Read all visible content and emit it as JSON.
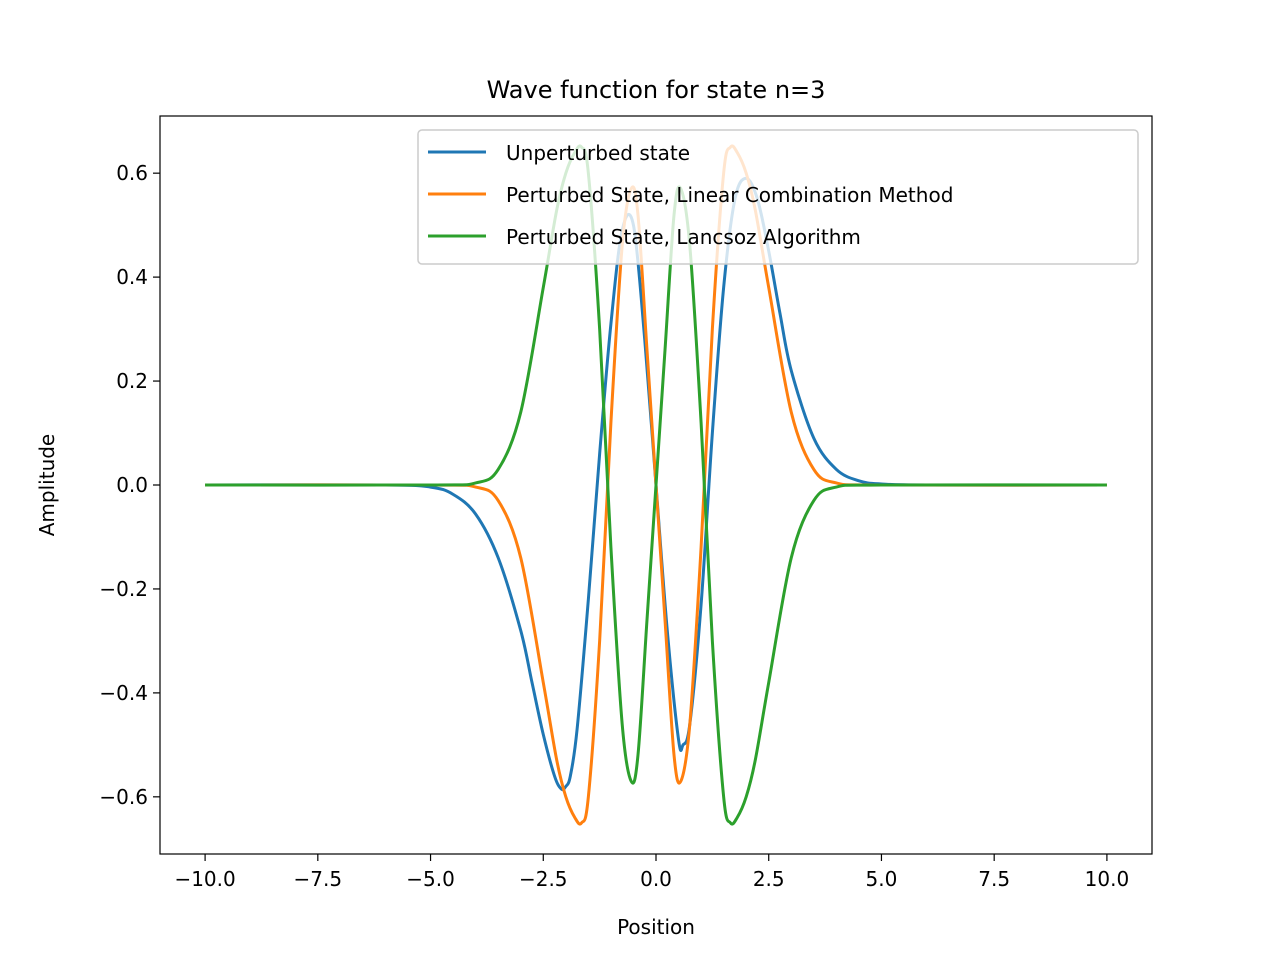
{
  "chart_data": {
    "type": "line",
    "title": "Wave function for state n=3",
    "xlabel": "Position",
    "ylabel": "Amplitude",
    "xlim": [
      -11.0,
      11.0
    ],
    "ylim": [
      -0.71,
      0.71
    ],
    "x_ticks": [
      -10.0,
      -7.5,
      -5.0,
      -2.5,
      0.0,
      2.5,
      5.0,
      7.5,
      10.0
    ],
    "x_tick_labels": [
      "−10.0",
      "−7.5",
      "−5.0",
      "−2.5",
      "0.0",
      "2.5",
      "5.0",
      "7.5",
      "10.0"
    ],
    "y_ticks": [
      -0.6,
      -0.4,
      -0.2,
      0.0,
      0.2,
      0.4,
      0.6
    ],
    "y_tick_labels": [
      "−0.6",
      "−0.4",
      "−0.2",
      "0.0",
      "0.2",
      "0.4",
      "0.6"
    ],
    "grid": false,
    "legend_position": "upper right",
    "series": [
      {
        "name": "Unperturbed state",
        "color": "#1f77b4",
        "x": [
          -10.0,
          -6.0,
          -5.0,
          -4.5,
          -4.0,
          -3.5,
          -3.0,
          -2.75,
          -2.5,
          -2.25,
          -2.1,
          -2.0,
          -1.9,
          -1.75,
          -1.5,
          -1.25,
          -1.0,
          -0.75,
          -0.5,
          -0.25,
          0.0,
          0.25,
          0.5,
          0.6,
          0.75,
          1.0,
          1.25,
          1.5,
          1.75,
          2.0,
          2.25,
          2.5,
          2.75,
          3.0,
          3.5,
          4.0,
          4.5,
          5.0,
          6.0,
          10.0
        ],
        "y": [
          0.0,
          0.0,
          -0.004,
          -0.018,
          -0.056,
          -0.14,
          -0.28,
          -0.38,
          -0.48,
          -0.56,
          -0.585,
          -0.58,
          -0.56,
          -0.47,
          -0.22,
          0.06,
          0.31,
          0.49,
          0.5,
          0.28,
          0.0,
          -0.28,
          -0.49,
          -0.5,
          -0.46,
          -0.23,
          0.1,
          0.38,
          0.55,
          0.59,
          0.55,
          0.45,
          0.33,
          0.22,
          0.09,
          0.03,
          0.008,
          0.002,
          0.0,
          0.0
        ]
      },
      {
        "name": "Perturbed State, Linear Combination Method",
        "color": "#ff7f0e",
        "x": [
          -10.0,
          -5.0,
          -4.0,
          -3.5,
          -3.0,
          -2.5,
          -2.2,
          -2.0,
          -1.8,
          -1.65,
          -1.5,
          -1.25,
          -1.0,
          -0.75,
          -0.55,
          -0.4,
          -0.2,
          0.0,
          0.2,
          0.4,
          0.55,
          0.75,
          1.0,
          1.25,
          1.5,
          1.65,
          1.8,
          2.0,
          2.2,
          2.5,
          3.0,
          3.5,
          4.0,
          5.0,
          10.0
        ],
        "y": [
          0.0,
          0.0,
          -0.004,
          -0.03,
          -0.14,
          -0.38,
          -0.53,
          -0.6,
          -0.64,
          -0.65,
          -0.6,
          -0.3,
          0.12,
          0.46,
          0.57,
          0.52,
          0.26,
          0.0,
          -0.26,
          -0.52,
          -0.57,
          -0.46,
          -0.12,
          0.3,
          0.6,
          0.65,
          0.64,
          0.6,
          0.53,
          0.38,
          0.14,
          0.03,
          0.004,
          0.0,
          0.0
        ]
      },
      {
        "name": "Perturbed State, Lancsoz Algorithm",
        "color": "#2ca02c",
        "x": [
          -10.0,
          -5.0,
          -4.0,
          -3.5,
          -3.0,
          -2.5,
          -2.2,
          -2.0,
          -1.8,
          -1.65,
          -1.5,
          -1.25,
          -1.0,
          -0.75,
          -0.55,
          -0.4,
          -0.2,
          0.0,
          0.2,
          0.4,
          0.55,
          0.75,
          1.0,
          1.25,
          1.5,
          1.65,
          1.8,
          2.0,
          2.2,
          2.5,
          3.0,
          3.5,
          4.0,
          5.0,
          10.0
        ],
        "y": [
          0.0,
          0.0,
          0.004,
          0.03,
          0.14,
          0.38,
          0.53,
          0.6,
          0.64,
          0.65,
          0.6,
          0.3,
          -0.12,
          -0.46,
          -0.57,
          -0.52,
          -0.26,
          0.0,
          0.26,
          0.52,
          0.57,
          0.46,
          0.12,
          -0.3,
          -0.6,
          -0.65,
          -0.64,
          -0.6,
          -0.53,
          -0.38,
          -0.14,
          -0.03,
          -0.004,
          0.0,
          0.0
        ]
      }
    ]
  }
}
